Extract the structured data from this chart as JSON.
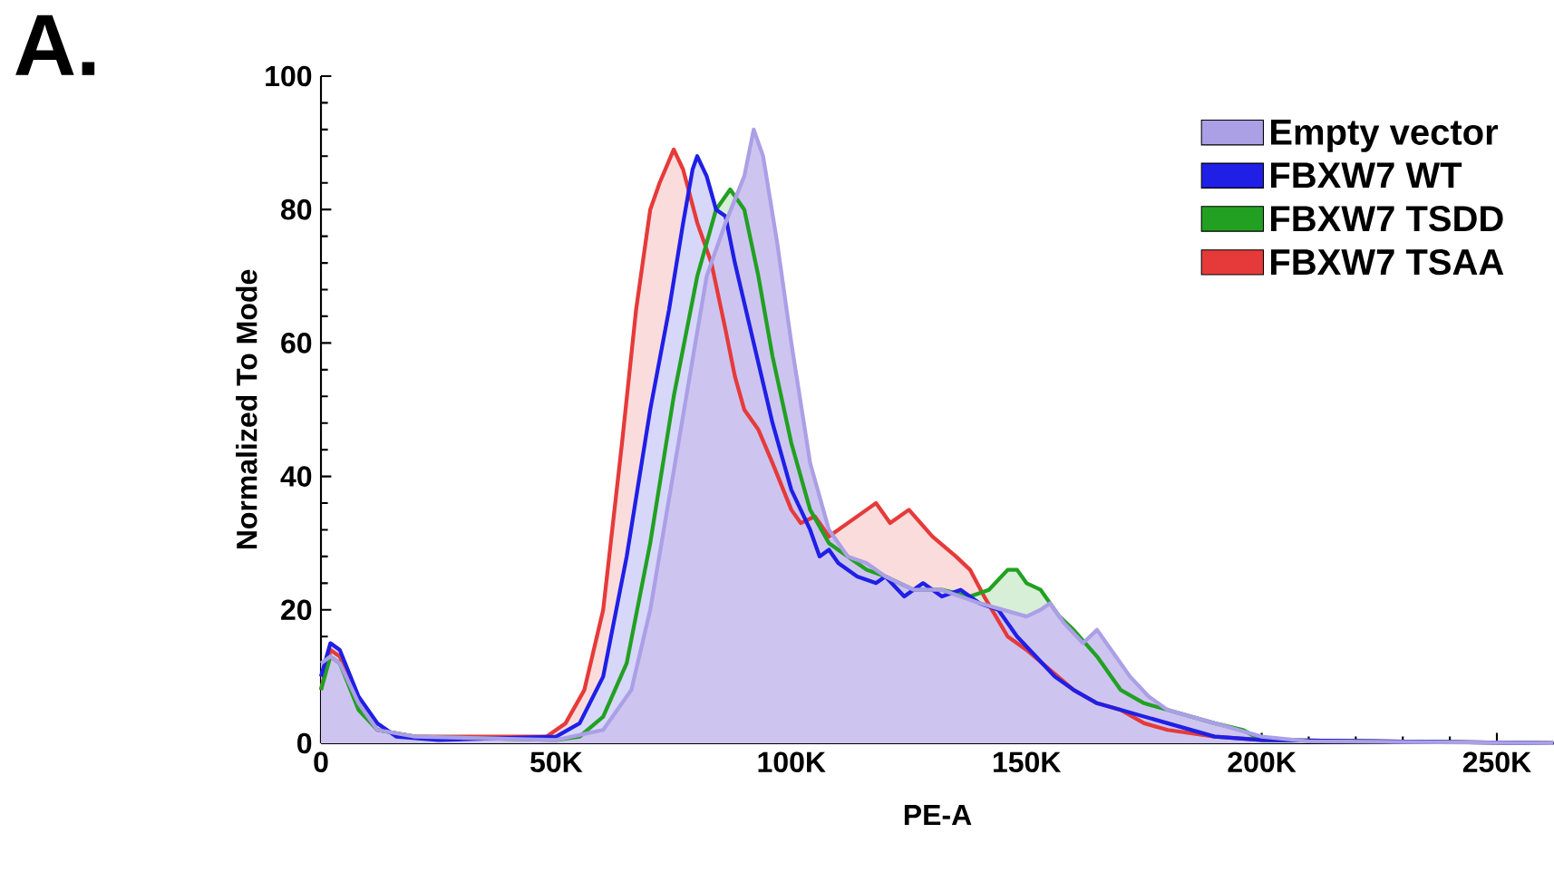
{
  "chart_data": {
    "type": "area",
    "title": "A.",
    "xlabel": "PE-A",
    "ylabel": "Normalized To Mode",
    "xlim": [
      0,
      262144
    ],
    "ylim": [
      0,
      100
    ],
    "xticks": [
      {
        "value": 0,
        "label": "0"
      },
      {
        "value": 50000,
        "label": "50K"
      },
      {
        "value": 100000,
        "label": "100K"
      },
      {
        "value": 150000,
        "label": "150K"
      },
      {
        "value": 200000,
        "label": "200K"
      },
      {
        "value": 250000,
        "label": "250K"
      }
    ],
    "yticks": [
      0,
      20,
      40,
      60,
      80,
      100
    ],
    "grid": false,
    "legend": "top right",
    "series": [
      {
        "name": "FBXW7 TSAA",
        "color": "#e63a3a",
        "x": [
          0,
          2000,
          4000,
          8000,
          12000,
          20000,
          30000,
          48000,
          52000,
          56000,
          60000,
          64000,
          67000,
          70000,
          72000,
          75000,
          77000,
          80000,
          83000,
          86000,
          88000,
          90000,
          93000,
          96000,
          100000,
          102000,
          105000,
          108000,
          112000,
          116000,
          118000,
          121000,
          125000,
          130000,
          135000,
          138000,
          141000,
          146000,
          150000,
          155000,
          160000,
          165000,
          170000,
          175000,
          180000,
          190000,
          200000,
          262000
        ],
        "values": [
          8,
          14,
          13,
          6,
          2,
          1,
          1,
          1,
          3,
          8,
          20,
          45,
          65,
          80,
          84,
          89,
          86,
          78,
          72,
          62,
          55,
          50,
          47,
          42,
          35,
          33,
          34,
          31,
          33,
          35,
          36,
          33,
          35,
          31,
          28,
          26,
          22,
          16,
          14,
          11,
          8,
          6,
          5,
          3,
          2,
          1,
          0.5,
          0
        ]
      },
      {
        "name": "FBXW7 TSDD",
        "color": "#22a022",
        "x": [
          0,
          2000,
          4000,
          8000,
          12000,
          20000,
          50000,
          55000,
          60000,
          65000,
          70000,
          75000,
          80000,
          84000,
          87000,
          90000,
          93000,
          96000,
          100000,
          104000,
          108000,
          112000,
          116000,
          120000,
          126000,
          132000,
          138000,
          142000,
          146000,
          148000,
          150000,
          153000,
          157000,
          160000,
          165000,
          170000,
          175000,
          180000,
          190000,
          196000,
          200000,
          262000
        ],
        "values": [
          8,
          13,
          12,
          5,
          2,
          1,
          0.5,
          1,
          4,
          12,
          30,
          52,
          70,
          80,
          83,
          80,
          70,
          58,
          45,
          35,
          30,
          28,
          26,
          25,
          23,
          23,
          22,
          23,
          26,
          26,
          24,
          23,
          19,
          17,
          13,
          8,
          6,
          5,
          3,
          2,
          0.5,
          0
        ]
      },
      {
        "name": "FBXW7 WT",
        "color": "#1f1fe6",
        "x": [
          0,
          2000,
          4000,
          8000,
          12000,
          16000,
          25000,
          50000,
          55000,
          60000,
          65000,
          70000,
          74000,
          77000,
          79000,
          80000,
          82000,
          84000,
          86000,
          88000,
          92000,
          96000,
          100000,
          104000,
          106000,
          108000,
          110000,
          114000,
          118000,
          120000,
          124000,
          128000,
          132000,
          136000,
          140000,
          144000,
          148000,
          152000,
          156000,
          160000,
          165000,
          170000,
          175000,
          180000,
          190000,
          200000,
          262000
        ],
        "values": [
          10,
          15,
          14,
          7,
          3,
          1,
          0.5,
          1,
          3,
          10,
          28,
          50,
          65,
          78,
          86,
          88,
          85,
          80,
          79,
          72,
          60,
          48,
          38,
          32,
          28,
          29,
          27,
          25,
          24,
          25,
          22,
          24,
          22,
          23,
          21,
          20,
          16,
          13,
          10,
          8,
          6,
          5,
          4,
          3,
          1,
          0.5,
          0
        ]
      },
      {
        "name": "Empty vector",
        "color": "#ab9fe6",
        "x": [
          0,
          2000,
          4000,
          8000,
          12000,
          20000,
          50000,
          60000,
          66000,
          70000,
          76000,
          82000,
          86000,
          90000,
          92000,
          94000,
          97000,
          100000,
          104000,
          108000,
          112000,
          116000,
          120000,
          126000,
          132000,
          140000,
          145000,
          150000,
          153000,
          155000,
          158000,
          162000,
          165000,
          168000,
          172000,
          176000,
          180000,
          190000,
          195000,
          200000,
          210000,
          262000
        ],
        "values": [
          12,
          13,
          12,
          6,
          2,
          1,
          0.5,
          2,
          8,
          20,
          45,
          70,
          78,
          85,
          92,
          88,
          75,
          60,
          42,
          32,
          28,
          27,
          25,
          23,
          23,
          21,
          20,
          19,
          20,
          21,
          18,
          15,
          17,
          14,
          10,
          7,
          5,
          3,
          2,
          1,
          0.3,
          0
        ]
      }
    ]
  }
}
